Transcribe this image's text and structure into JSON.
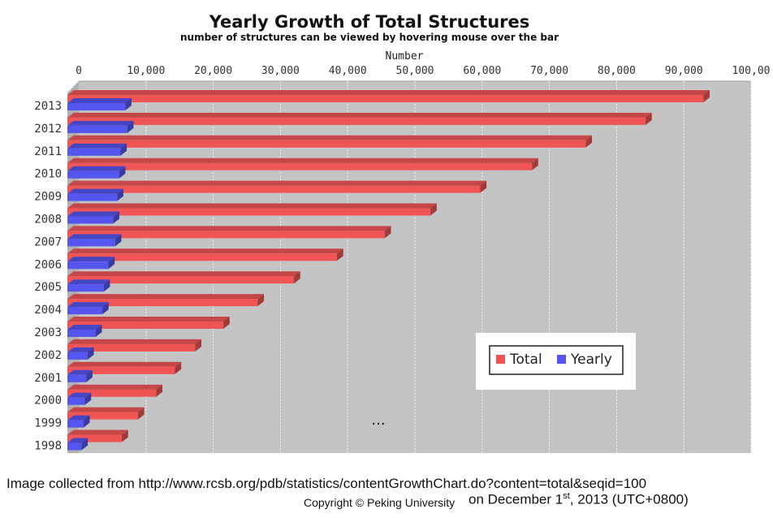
{
  "chart_data": {
    "type": "bar",
    "orientation": "horizontal",
    "title": "Yearly Growth of Total Structures",
    "subtitle": "number of structures can be viewed by hovering mouse over the bar",
    "xlabel": "Number",
    "ylabel": "",
    "xlim": [
      0,
      100000
    ],
    "x_ticks": [
      "0",
      "10,000",
      "20,000",
      "30,000",
      "40,000",
      "50,000",
      "60,000",
      "70,000",
      "80,000",
      "90,000",
      "100,00"
    ],
    "categories": [
      "2013",
      "2012",
      "2011",
      "2010",
      "2009",
      "2008",
      "2007",
      "2006",
      "2005",
      "2004",
      "2003",
      "2002",
      "2001",
      "2000",
      "1999",
      "1998"
    ],
    "series": [
      {
        "name": "Total",
        "color": "#f05555",
        "values": [
          94600,
          86000,
          77100,
          69100,
          61400,
          54000,
          47200,
          40100,
          33700,
          28300,
          23200,
          19000,
          16000,
          13200,
          10500,
          8100
        ]
      },
      {
        "name": "Yearly",
        "color": "#5555f0",
        "values": [
          8600,
          8900,
          7900,
          7700,
          7400,
          6800,
          7100,
          6100,
          5400,
          5200,
          4200,
          3000,
          2800,
          2600,
          2400,
          2100
        ]
      }
    ],
    "legend_position": "bottom-right",
    "grid": true,
    "style": "3d",
    "annotation": "..."
  },
  "footer": {
    "source": "Image collected from http://www.rcsb.org/pdb/statistics/contentGrowthChart.do?content=total&seqid=100",
    "copyright": "Copyright © Peking University",
    "date_prefix": "on December 1",
    "date_sup": "st",
    "date_suffix": ", 2013  (UTC+0800)"
  }
}
